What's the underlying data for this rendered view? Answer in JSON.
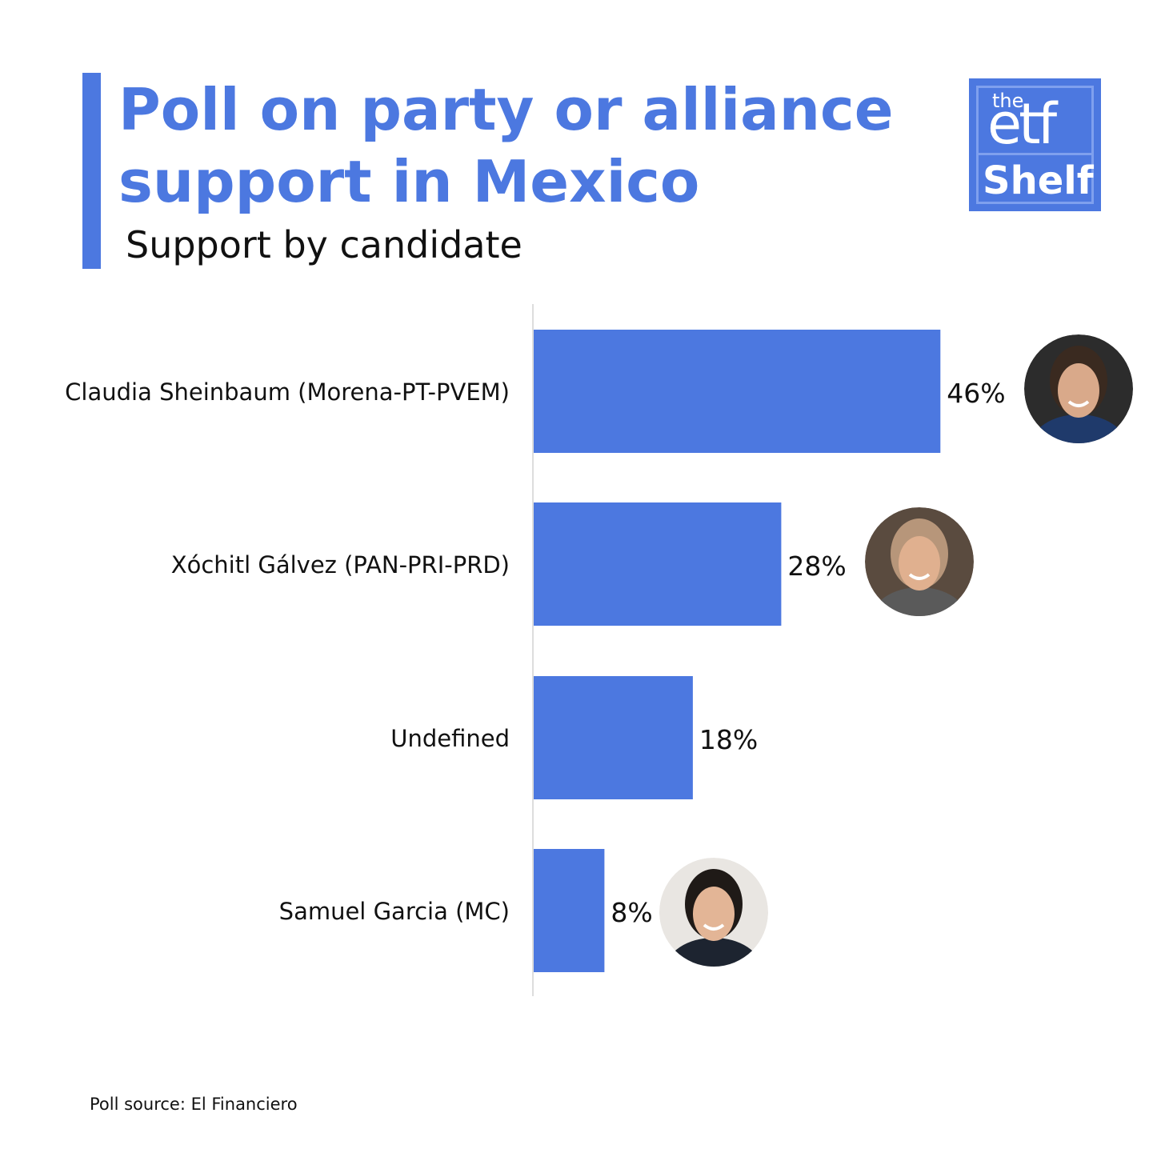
{
  "title_line1": "Poll on party or alliance",
  "title_line2": "support in Mexico",
  "subtitle": "Support by candidate",
  "logo": {
    "top": "the",
    "middle": "etf",
    "bottom": "Shelf"
  },
  "source": "Poll source: El Financiero",
  "colors": {
    "accent": "#4c78e0",
    "text": "#111111",
    "axis": "#dddddd"
  },
  "chart_data": {
    "type": "bar",
    "orientation": "horizontal",
    "categories": [
      "Claudia Sheinbaum (Morena-PT-PVEM)",
      "Xóchitl Gálvez (PAN-PRI-PRD)",
      "Undefined",
      "Samuel Garcia (MC)"
    ],
    "values": [
      46,
      28,
      18,
      8
    ],
    "value_labels": [
      "46%",
      "28%",
      "18%",
      "8%"
    ],
    "photos": [
      "candidate-photo-sheinbaum",
      "candidate-photo-galvez",
      null,
      "candidate-photo-garcia"
    ],
    "xlim": [
      0,
      50
    ],
    "grid": false,
    "bar_color": "#4c78e0"
  }
}
